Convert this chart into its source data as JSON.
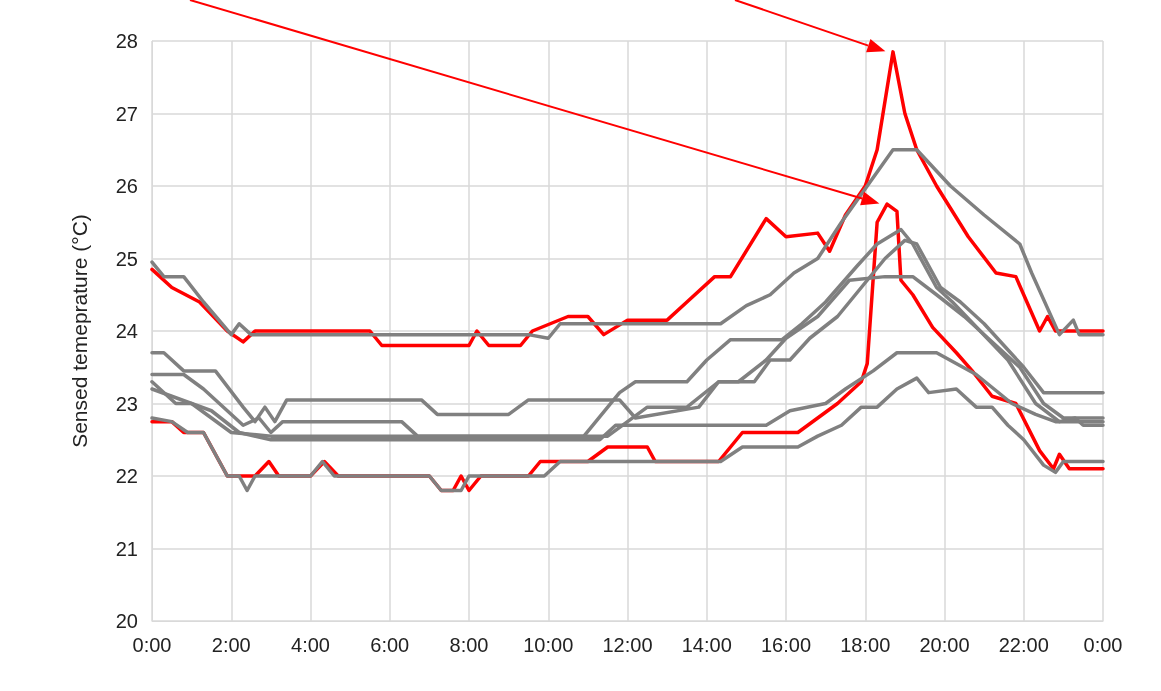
{
  "chart_data": {
    "type": "line",
    "ylabel": "Sensed temeprature (°C)",
    "xlim": [
      0,
      24
    ],
    "ylim": [
      20,
      28
    ],
    "xticks": [
      {
        "value": 0,
        "label": "0:00"
      },
      {
        "value": 2,
        "label": "2:00"
      },
      {
        "value": 4,
        "label": "4:00"
      },
      {
        "value": 6,
        "label": "6:00"
      },
      {
        "value": 8,
        "label": "8:00"
      },
      {
        "value": 10,
        "label": "10:00"
      },
      {
        "value": 12,
        "label": "12:00"
      },
      {
        "value": 14,
        "label": "14:00"
      },
      {
        "value": 16,
        "label": "16:00"
      },
      {
        "value": 18,
        "label": "18:00"
      },
      {
        "value": 20,
        "label": "20:00"
      },
      {
        "value": 22,
        "label": "22:00"
      },
      {
        "value": 24,
        "label": "0:00"
      }
    ],
    "yticks": [
      20,
      21,
      22,
      23,
      24,
      25,
      26,
      27,
      28
    ],
    "grid": true,
    "marker": "none",
    "line_style": "solid",
    "series": [
      {
        "color": "#ff0000",
        "x": [
          0,
          0.5,
          1.2,
          1.9,
          2.3,
          2.6,
          5.5,
          5.8,
          8.0,
          8.2,
          8.5,
          9.3,
          9.6,
          10.5,
          11.0,
          11.4,
          12.0,
          13.0,
          13.5,
          14.2,
          14.6,
          15.5,
          16.0,
          16.8,
          17.1,
          17.5,
          18.0,
          18.3,
          18.7,
          19.0,
          19.3,
          19.8,
          20.6,
          21.3,
          21.8,
          22.4,
          22.6,
          22.8,
          24
        ],
        "values": [
          24.85,
          24.6,
          24.4,
          24.0,
          23.85,
          24.0,
          24.0,
          23.8,
          23.8,
          24.0,
          23.8,
          23.8,
          24.0,
          24.2,
          24.2,
          23.95,
          24.15,
          24.15,
          24.4,
          24.75,
          24.75,
          25.55,
          25.3,
          25.35,
          25.1,
          25.6,
          26.0,
          26.5,
          27.85,
          27.0,
          26.5,
          26.0,
          25.3,
          24.8,
          24.75,
          24.0,
          24.2,
          24.0,
          24.0
        ]
      },
      {
        "color": "#ff0000",
        "x": [
          0,
          0.5,
          0.8,
          1.3,
          1.9,
          2.6,
          2.95,
          3.2,
          4.0,
          4.35,
          4.7,
          7.0,
          7.3,
          7.6,
          7.8,
          8.0,
          8.3,
          9.5,
          9.8,
          11.0,
          11.5,
          12.5,
          12.7,
          14.3,
          14.9,
          16.3,
          16.8,
          17.3,
          17.9,
          18.05,
          18.3,
          18.55,
          18.8,
          18.9,
          19.2,
          19.7,
          20.3,
          20.7,
          21.2,
          21.8,
          22.4,
          22.75,
          22.9,
          23.15,
          24
        ],
        "values": [
          22.75,
          22.75,
          22.6,
          22.6,
          22.0,
          22.0,
          22.2,
          22.0,
          22.0,
          22.2,
          22.0,
          22.0,
          21.8,
          21.8,
          22.0,
          21.8,
          22.0,
          22.0,
          22.2,
          22.2,
          22.4,
          22.4,
          22.2,
          22.2,
          22.6,
          22.6,
          22.8,
          23.0,
          23.3,
          23.55,
          25.5,
          25.75,
          25.65,
          24.7,
          24.5,
          24.05,
          23.7,
          23.45,
          23.1,
          23.0,
          22.35,
          22.1,
          22.3,
          22.1,
          22.1
        ]
      },
      {
        "color": "#808080",
        "x": [
          0,
          0.3,
          0.8,
          1.3,
          2.0,
          2.2,
          2.5,
          9.5,
          10.0,
          10.3,
          14.35,
          15.0,
          15.6,
          16.2,
          16.8,
          17.4,
          18.7,
          19.3,
          20.15,
          21.0,
          21.9,
          22.2,
          22.9,
          23.25,
          23.4,
          24
        ],
        "values": [
          24.95,
          24.75,
          24.75,
          24.4,
          23.95,
          24.1,
          23.95,
          23.95,
          23.9,
          24.1,
          24.1,
          24.35,
          24.5,
          24.8,
          25.0,
          25.5,
          26.5,
          26.5,
          26.0,
          25.6,
          25.2,
          24.8,
          23.95,
          24.15,
          23.95,
          23.95
        ]
      },
      {
        "color": "#808080",
        "x": [
          0,
          0.3,
          0.8,
          1.6,
          2.3,
          2.6,
          2.85,
          3.1,
          3.4,
          6.8,
          7.2,
          9.0,
          9.5,
          11.8,
          12.2,
          13.8,
          14.3,
          15.2,
          15.6,
          16.1,
          16.6,
          17.3,
          17.9,
          18.5,
          19.0,
          19.3,
          19.9,
          20.4,
          21.0,
          21.5,
          22.0,
          22.5,
          24
        ],
        "values": [
          23.7,
          23.7,
          23.45,
          23.45,
          22.95,
          22.75,
          22.95,
          22.75,
          23.05,
          23.05,
          22.85,
          22.85,
          23.05,
          23.05,
          22.8,
          22.95,
          23.3,
          23.3,
          23.6,
          23.6,
          23.9,
          24.2,
          24.6,
          25.0,
          25.25,
          25.2,
          24.6,
          24.4,
          24.1,
          23.8,
          23.5,
          23.15,
          23.15
        ]
      },
      {
        "color": "#808080",
        "x": [
          0,
          0.8,
          1.3,
          2.3,
          2.7,
          3.0,
          3.3,
          6.3,
          6.7,
          10.9,
          11.8,
          12.2,
          13.5,
          14.0,
          14.6,
          15.9,
          16.4,
          17.0,
          17.8,
          18.3,
          18.9,
          19.2,
          19.8,
          20.2,
          20.9,
          21.6,
          22.3,
          22.9,
          23.3,
          23.5,
          24
        ],
        "values": [
          23.4,
          23.4,
          23.2,
          22.7,
          22.8,
          22.6,
          22.75,
          22.75,
          22.55,
          22.55,
          23.15,
          23.3,
          23.3,
          23.6,
          23.88,
          23.88,
          24.1,
          24.4,
          24.9,
          25.2,
          25.4,
          25.2,
          24.6,
          24.4,
          24.0,
          23.6,
          23.0,
          22.75,
          22.8,
          22.7,
          22.7
        ]
      },
      {
        "color": "#808080",
        "x": [
          0,
          0.6,
          1.0,
          2.0,
          3.0,
          11.5,
          12.0,
          12.5,
          13.5,
          14.3,
          14.8,
          15.5,
          16.0,
          16.8,
          17.6,
          18.5,
          19.2,
          19.8,
          20.5,
          21.3,
          21.9,
          22.5,
          23.0,
          24
        ],
        "values": [
          23.3,
          23.0,
          23.0,
          22.6,
          22.55,
          22.55,
          22.75,
          22.95,
          22.95,
          23.3,
          23.3,
          23.6,
          23.9,
          24.2,
          24.7,
          24.75,
          24.75,
          24.5,
          24.2,
          23.8,
          23.5,
          23.0,
          22.8,
          22.8
        ]
      },
      {
        "color": "#808080",
        "x": [
          0,
          0.5,
          1.5,
          2.2,
          3.0,
          11.3,
          11.7,
          15.5,
          16.1,
          17.0,
          17.5,
          18.2,
          18.8,
          19.8,
          20.8,
          21.7,
          22.3,
          22.8,
          24
        ],
        "values": [
          23.2,
          23.1,
          22.9,
          22.6,
          22.5,
          22.5,
          22.7,
          22.7,
          22.9,
          23.0,
          23.2,
          23.45,
          23.7,
          23.7,
          23.4,
          23.0,
          22.85,
          22.75,
          22.75
        ]
      },
      {
        "color": "#808080",
        "x": [
          0,
          0.5,
          0.9,
          1.3,
          1.9,
          2.2,
          2.4,
          2.6,
          4.0,
          4.3,
          4.6,
          7.0,
          7.3,
          7.8,
          8.0,
          9.9,
          10.3,
          14.35,
          14.9,
          16.3,
          16.8,
          17.4,
          17.9,
          18.3,
          18.8,
          19.3,
          19.6,
          20.3,
          20.8,
          21.2,
          21.6,
          22.0,
          22.5,
          22.8,
          23.0,
          24
        ],
        "values": [
          22.8,
          22.75,
          22.6,
          22.6,
          22.0,
          22.0,
          21.8,
          22.0,
          22.0,
          22.2,
          22.0,
          22.0,
          21.8,
          21.8,
          22.0,
          22.0,
          22.2,
          22.2,
          22.4,
          22.4,
          22.55,
          22.7,
          22.95,
          22.95,
          23.2,
          23.35,
          23.15,
          23.2,
          22.95,
          22.95,
          22.7,
          22.5,
          22.15,
          22.05,
          22.2,
          22.2
        ]
      }
    ]
  }
}
